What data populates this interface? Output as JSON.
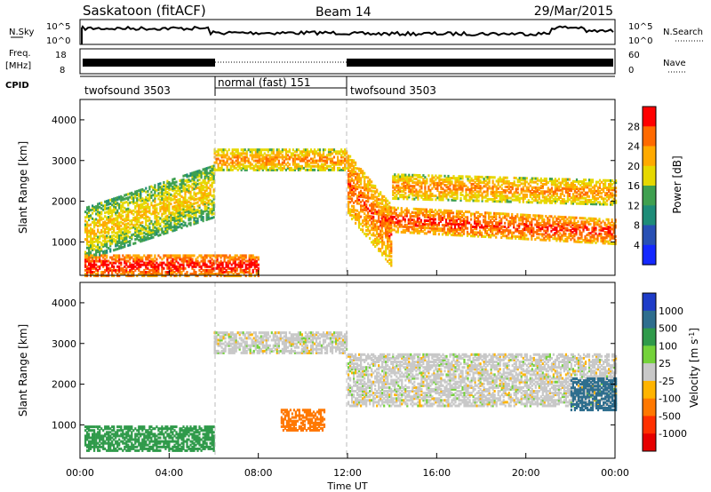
{
  "header": {
    "station": "Saskatoon (fitACF)",
    "beam": "Beam 14",
    "date": "29/Mar/2015"
  },
  "noise_panel": {
    "left_label": "N.Sky",
    "left_ticks": [
      "10^5",
      "10^0"
    ],
    "right_label": "N.Search",
    "right_ticks": [
      "10^5",
      "10^0"
    ]
  },
  "freq_panel": {
    "left_label_1": "Freq.",
    "left_label_2": "[MHz]",
    "left_ticks": [
      "18",
      "8"
    ],
    "right_label": "Nave",
    "right_ticks": [
      "60",
      "0"
    ]
  },
  "cpid_panel": {
    "label": "CPID",
    "segments": [
      {
        "name": "twofsound 3503",
        "start_hour": 0,
        "end_hour": 6
      },
      {
        "name": "normal (fast) 151",
        "start_hour": 6,
        "end_hour": 12
      },
      {
        "name": "twofsound 3503",
        "start_hour": 12,
        "end_hour": 24
      }
    ]
  },
  "power_colorbar": {
    "label": "Power [dB]",
    "ticks": [
      "28",
      "24",
      "20",
      "16",
      "12",
      "8",
      "4"
    ],
    "colors": [
      "#ff0000",
      "#ff6a00",
      "#ffaa00",
      "#e6d800",
      "#3fa050",
      "#1e8c78",
      "#2850b4",
      "#1428ff"
    ]
  },
  "velocity_colorbar": {
    "label": "Velocity [m s",
    "label_sup": "-1",
    "label_end": "]",
    "ticks": [
      "1000",
      "500",
      "100",
      "25",
      "-25",
      "-100",
      "-500",
      "-1000"
    ],
    "colors": [
      "#1e3cc8",
      "#2e6e8e",
      "#2f9a4a",
      "#74d23a",
      "#c8c8c8",
      "#ffb400",
      "#ff7800",
      "#ff3000",
      "#e60000"
    ]
  },
  "chart_data": [
    {
      "type": "heatmap",
      "name": "power",
      "ylabel": "Slant Range [km]",
      "xlim": [
        0,
        24
      ],
      "ylim": [
        180,
        4500
      ],
      "yticks": [
        "1000",
        "2000",
        "3000",
        "4000"
      ],
      "echo_bands": [
        {
          "t0": 0.2,
          "t1": 6.0,
          "r0": 600,
          "r1": 1900,
          "slope": 180,
          "power": 14
        },
        {
          "t0": 6.0,
          "t1": 12.0,
          "r0": 2800,
          "r1": 3300,
          "slope": 0,
          "power": 18
        },
        {
          "t0": 12.0,
          "t1": 14.0,
          "r0": 1700,
          "r1": 3200,
          "slope": -650,
          "power": 20
        },
        {
          "t0": 13.5,
          "t1": 24.0,
          "r0": 1300,
          "r1": 1900,
          "slope": -30,
          "power": 22
        },
        {
          "t0": 14.0,
          "t1": 24.0,
          "r0": 2100,
          "r1": 2700,
          "slope": -15,
          "power": 18
        },
        {
          "t0": 0.2,
          "t1": 8.0,
          "r0": 200,
          "r1": 700,
          "slope": 0,
          "power": 24
        }
      ]
    },
    {
      "type": "heatmap",
      "name": "velocity",
      "ylabel": "Slant Range [km]",
      "xlabel": "Time UT",
      "xlim": [
        0,
        24
      ],
      "ylim": [
        180,
        4500
      ],
      "yticks": [
        "1000",
        "2000",
        "3000",
        "4000"
      ],
      "xticks": [
        "00:00",
        "04:00",
        "08:00",
        "12:00",
        "16:00",
        "20:00",
        "00:00"
      ],
      "echo_bands": [
        {
          "t0": 6.0,
          "t1": 12.0,
          "r0": 2800,
          "r1": 3300,
          "velocity": 0
        },
        {
          "t0": 12.0,
          "t1": 24.0,
          "r0": 1500,
          "r1": 2800,
          "velocity": 0
        },
        {
          "t0": 0.2,
          "t1": 6.0,
          "r0": 400,
          "r1": 1000,
          "velocity": 300
        },
        {
          "t0": 9.0,
          "t1": 11.0,
          "r0": 900,
          "r1": 1400,
          "velocity": -400
        },
        {
          "t0": 22.0,
          "t1": 24.0,
          "r0": 1400,
          "r1": 2200,
          "velocity": 800
        }
      ]
    }
  ]
}
